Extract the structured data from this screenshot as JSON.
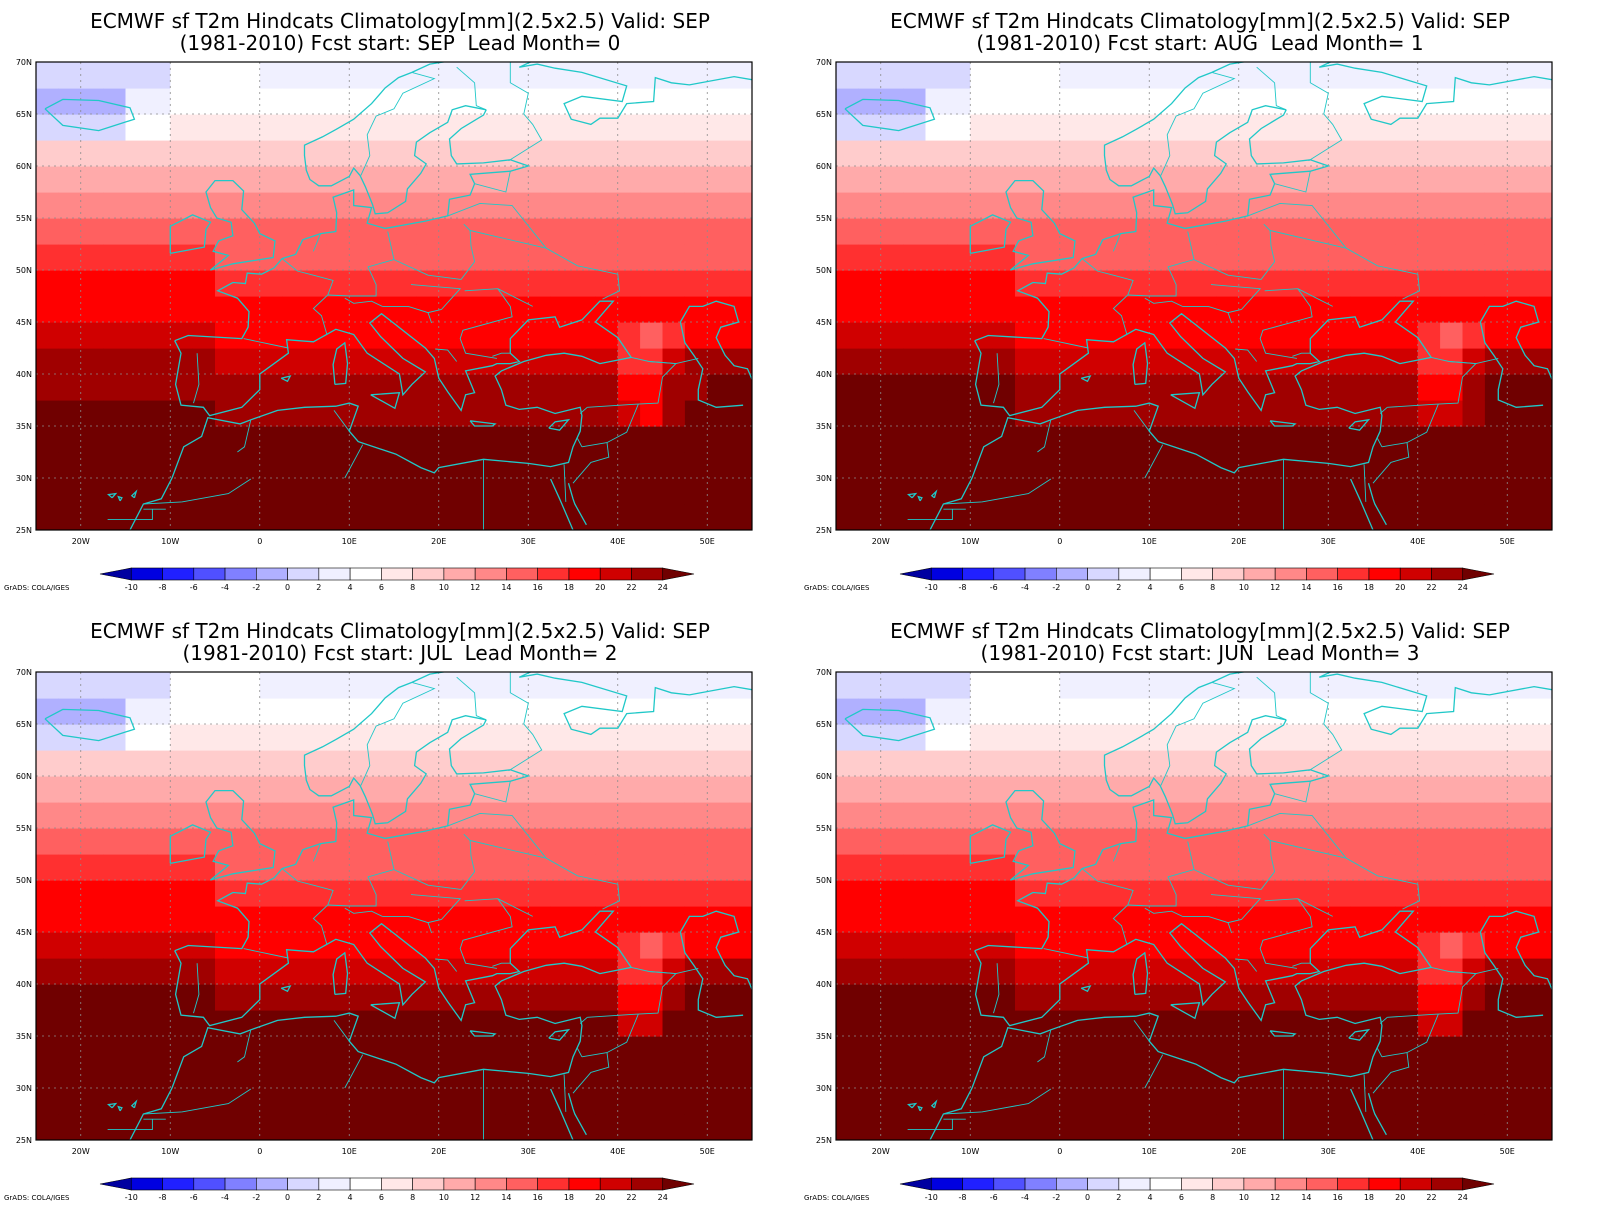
{
  "figure": {
    "credit": "GrADS: COLA/IGES",
    "panels": [
      {
        "title_line1": "ECMWF sf T2m Hindcats Climatology[mm](2.5x2.5) Valid: SEP",
        "title_line2": "(1981-2010) Fcst start: SEP  Lead Month= 0"
      },
      {
        "title_line1": "ECMWF sf T2m Hindcats Climatology[mm](2.5x2.5) Valid: SEP",
        "title_line2": "(1981-2010) Fcst start: AUG  Lead Month= 1"
      },
      {
        "title_line1": "ECMWF sf T2m Hindcats Climatology[mm](2.5x2.5) Valid: SEP",
        "title_line2": "(1981-2010) Fcst start: JUL  Lead Month= 2"
      },
      {
        "title_line1": "ECMWF sf T2m Hindcats Climatology[mm](2.5x2.5) Valid: SEP",
        "title_line2": "(1981-2010) Fcst start: JUN  Lead Month= 3"
      }
    ],
    "lat_ticks": [
      "70N",
      "65N",
      "60N",
      "55N",
      "50N",
      "45N",
      "40N",
      "35N",
      "30N",
      "25N"
    ],
    "lon_ticks": [
      "20W",
      "10W",
      "0",
      "10E",
      "20E",
      "30E",
      "40E",
      "50E"
    ],
    "lon_range": [
      -25,
      55
    ],
    "lat_range": [
      25,
      70
    ],
    "colorbar_labels": [
      "-10",
      "-8",
      "-6",
      "-4",
      "-2",
      "0",
      "2",
      "4",
      "6",
      "8",
      "10",
      "12",
      "14",
      "16",
      "18",
      "20",
      "22",
      "24"
    ],
    "colorbar_colors": [
      "#0000a0",
      "#0000e0",
      "#2020ff",
      "#5050ff",
      "#8080ff",
      "#b0b0ff",
      "#d8d8ff",
      "#f0f0ff",
      "#ffffff",
      "#ffe8e8",
      "#ffcccc",
      "#ffaaaa",
      "#ff8888",
      "#ff6060",
      "#ff3030",
      "#ff0000",
      "#d00000",
      "#a00000",
      "#700000"
    ],
    "map_colors": {
      "coast": "#20c8c8",
      "grid": "#8c8c8c"
    }
  }
}
